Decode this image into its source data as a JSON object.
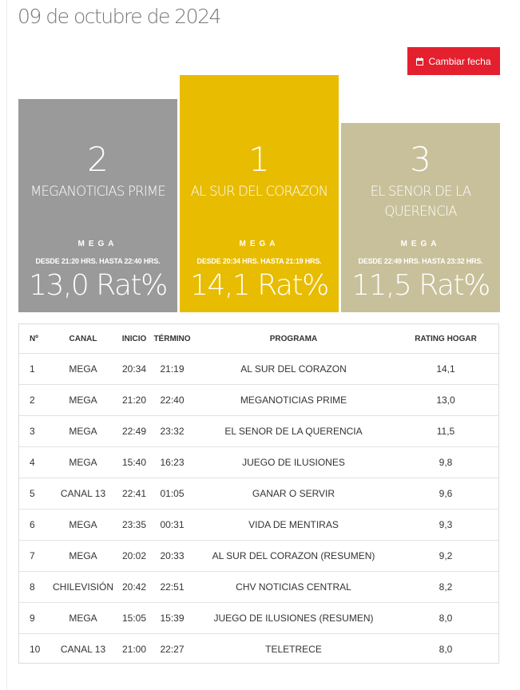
{
  "title": "09 de octubre de 2024",
  "change_date_button": {
    "label": "Cambiar fecha",
    "icon": "calendar-icon"
  },
  "podium": [
    {
      "rank": "2",
      "program": "MEGANOTICIAS PRIME",
      "channel": "MEGA",
      "time": "DESDE 21:20 HRS. HASTA 22:40 HRS.",
      "rating": "13,0 Rat%",
      "color": "#9a9a9a"
    },
    {
      "rank": "1",
      "program": "AL SUR DEL CORAZON",
      "channel": "MEGA",
      "time": "DESDE 20:34 HRS. HASTA 21:19 HRS.",
      "rating": "14,1 Rat%",
      "color": "#e8bc00"
    },
    {
      "rank": "3",
      "program": "EL SENOR DE LA QUERENCIA",
      "channel": "MEGA",
      "time": "DESDE 22:49 HRS. HASTA 23:32 HRS.",
      "rating": "11,5 Rat%",
      "color": "#c8c09a"
    }
  ],
  "table": {
    "headers": {
      "num": "Nº",
      "channel": "CANAL",
      "start": "INICIO",
      "end": "TÉRMINO",
      "program": "PROGRAMA",
      "rating": "RATING HOGAR"
    },
    "rows": [
      {
        "num": "1",
        "channel": "MEGA",
        "start": "20:34",
        "end": "21:19",
        "program": "AL SUR DEL CORAZON",
        "rating": "14,1"
      },
      {
        "num": "2",
        "channel": "MEGA",
        "start": "21:20",
        "end": "22:40",
        "program": "MEGANOTICIAS PRIME",
        "rating": "13,0"
      },
      {
        "num": "3",
        "channel": "MEGA",
        "start": "22:49",
        "end": "23:32",
        "program": "EL SENOR DE LA QUERENCIA",
        "rating": "11,5"
      },
      {
        "num": "4",
        "channel": "MEGA",
        "start": "15:40",
        "end": "16:23",
        "program": "JUEGO DE ILUSIONES",
        "rating": "9,8"
      },
      {
        "num": "5",
        "channel": "CANAL 13",
        "start": "22:41",
        "end": "01:05",
        "program": "GANAR O SERVIR",
        "rating": "9,6"
      },
      {
        "num": "6",
        "channel": "MEGA",
        "start": "23:35",
        "end": "00:31",
        "program": "VIDA DE MENTIRAS",
        "rating": "9,3"
      },
      {
        "num": "7",
        "channel": "MEGA",
        "start": "20:02",
        "end": "20:33",
        "program": "AL SUR DEL CORAZON (RESUMEN)",
        "rating": "9,2"
      },
      {
        "num": "8",
        "channel": "CHILEVISIÓN",
        "start": "20:42",
        "end": "22:51",
        "program": "CHV NOTICIAS CENTRAL",
        "rating": "8,2"
      },
      {
        "num": "9",
        "channel": "MEGA",
        "start": "15:05",
        "end": "15:39",
        "program": "JUEGO DE ILUSIONES (RESUMEN)",
        "rating": "8,0"
      },
      {
        "num": "10",
        "channel": "CANAL 13",
        "start": "21:00",
        "end": "22:27",
        "program": "TELETRECE",
        "rating": "8,0"
      }
    ]
  }
}
